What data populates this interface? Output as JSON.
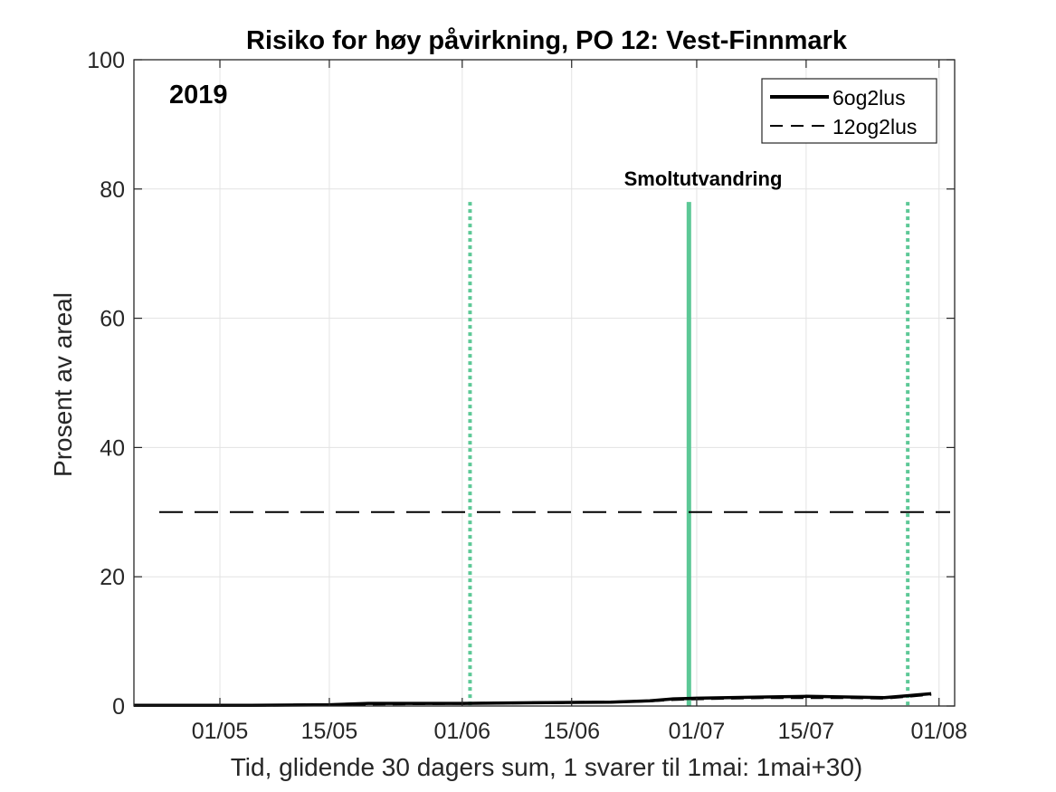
{
  "chart_data": {
    "type": "line",
    "title": "Risiko for høy påvirkning, PO 12: Vest-Finnmark",
    "xlabel": "Tid, glidende 30 dagers sum, 1 svarer til 1mai: 1mai+30)",
    "ylabel": "Prosent av areal",
    "year_label": "2019",
    "annotation": "Smoltutvandring",
    "x_start": "2019-04-20",
    "xlim": [
      "2019-04-20",
      "2019-08-03"
    ],
    "ylim": [
      0,
      100
    ],
    "x_ticks": [
      {
        "date": "2019-05-01",
        "label": "01/05"
      },
      {
        "date": "2019-05-15",
        "label": "15/05"
      },
      {
        "date": "2019-06-01",
        "label": "01/06"
      },
      {
        "date": "2019-06-15",
        "label": "15/06"
      },
      {
        "date": "2019-07-01",
        "label": "01/07"
      },
      {
        "date": "2019-07-15",
        "label": "15/07"
      },
      {
        "date": "2019-08-01",
        "label": "01/08"
      }
    ],
    "y_ticks": [
      0,
      20,
      40,
      60,
      80,
      100
    ],
    "grid": true,
    "legend_position": "top-right",
    "series": [
      {
        "name": "6og2lus",
        "style": "solid",
        "color": "#000000",
        "points": [
          [
            "2019-04-20",
            0.1
          ],
          [
            "2019-05-05",
            0.1
          ],
          [
            "2019-05-15",
            0.2
          ],
          [
            "2019-05-20",
            0.4
          ],
          [
            "2019-06-01",
            0.4
          ],
          [
            "2019-06-10",
            0.5
          ],
          [
            "2019-06-20",
            0.6
          ],
          [
            "2019-06-25",
            0.8
          ],
          [
            "2019-06-28",
            1.1
          ],
          [
            "2019-07-01",
            1.2
          ],
          [
            "2019-07-05",
            1.3
          ],
          [
            "2019-07-10",
            1.4
          ],
          [
            "2019-07-15",
            1.5
          ],
          [
            "2019-07-20",
            1.4
          ],
          [
            "2019-07-25",
            1.3
          ],
          [
            "2019-07-28",
            1.6
          ],
          [
            "2019-07-31",
            1.9
          ]
        ]
      },
      {
        "name": "12og2lus",
        "style": "dashed",
        "color": "#000000",
        "points": [
          [
            "2019-04-20",
            0.1
          ],
          [
            "2019-05-05",
            0.1
          ],
          [
            "2019-05-15",
            0.2
          ],
          [
            "2019-05-20",
            0.3
          ],
          [
            "2019-06-01",
            0.4
          ],
          [
            "2019-06-10",
            0.5
          ],
          [
            "2019-06-20",
            0.6
          ],
          [
            "2019-06-25",
            0.8
          ],
          [
            "2019-06-28",
            1.0
          ],
          [
            "2019-07-01",
            1.1
          ],
          [
            "2019-07-05",
            1.2
          ],
          [
            "2019-07-10",
            1.3
          ],
          [
            "2019-07-15",
            1.3
          ],
          [
            "2019-07-20",
            1.3
          ],
          [
            "2019-07-25",
            1.2
          ],
          [
            "2019-07-28",
            1.5
          ],
          [
            "2019-07-31",
            1.8
          ]
        ]
      }
    ],
    "threshold": {
      "y": 30,
      "style": "dashed",
      "color": "#000000"
    },
    "vertical_markers": [
      {
        "date": "2019-06-02",
        "style": "dotted",
        "color": "#5cc896",
        "y_top": 78
      },
      {
        "date": "2019-06-30",
        "style": "solid",
        "color": "#5cc896",
        "y_top": 78
      },
      {
        "date": "2019-07-28",
        "style": "dotted",
        "color": "#5cc896",
        "y_top": 78
      }
    ]
  }
}
